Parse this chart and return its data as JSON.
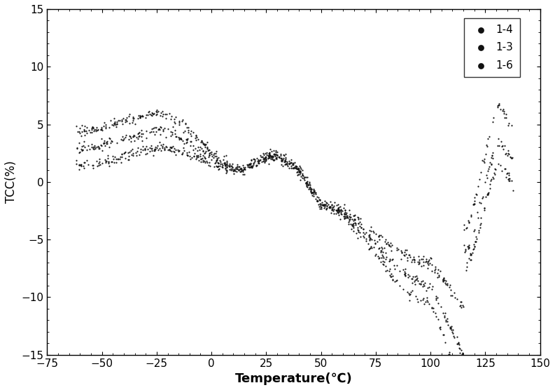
{
  "title": "",
  "xlabel": "Temperature(℃)",
  "ylabel": "TCC(%)",
  "xlim": [
    -75,
    150
  ],
  "ylim": [
    -15,
    15
  ],
  "xticks": [
    -75,
    -50,
    -25,
    0,
    25,
    50,
    75,
    100,
    125,
    150
  ],
  "yticks": [
    -15,
    -10,
    -5,
    0,
    5,
    10,
    15
  ],
  "legend_labels": [
    "1-4",
    "1-3",
    "1-6"
  ],
  "dot_color": "#111111",
  "dot_size": 2.5,
  "background_color": "#ffffff",
  "xlabel_fontsize": 13,
  "ylabel_fontsize": 12,
  "tick_fontsize": 11,
  "curve_params": [
    {
      "start": 5.0,
      "peak": 6.0,
      "trough": -7.0,
      "end": 6.5,
      "noise": 0.22,
      "seed": 1
    },
    {
      "start": 3.5,
      "peak": 4.5,
      "trough": -9.0,
      "end": 3.5,
      "noise": 0.22,
      "seed": 2
    },
    {
      "start": 2.0,
      "peak": 3.0,
      "trough": -10.5,
      "end": 1.5,
      "noise": 0.22,
      "seed": 3
    }
  ]
}
